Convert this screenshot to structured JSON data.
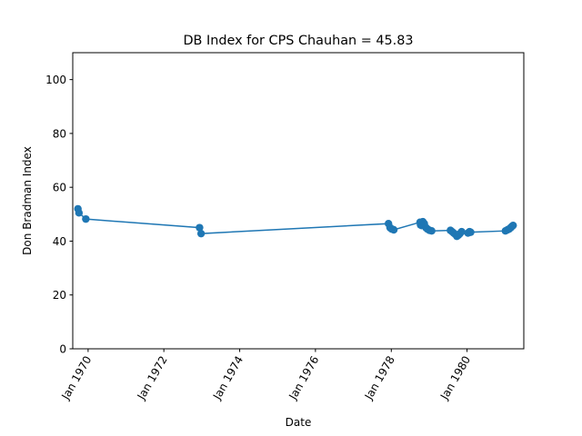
{
  "chart_data": {
    "type": "line",
    "title": "DB Index for CPS Chauhan = 45.83",
    "xlabel": "Date",
    "ylabel": "Don Bradman Index",
    "x_ticks": [
      "Jan 1970",
      "Jan 1972",
      "Jan 1974",
      "Jan 1976",
      "Jan 1978",
      "Jan 1980"
    ],
    "y_ticks": [
      "0",
      "20",
      "40",
      "60",
      "80",
      "100"
    ],
    "xlim": [
      "1969-08-06",
      "1981-07-01"
    ],
    "ylim": [
      0,
      110
    ],
    "grid": false,
    "series": [
      {
        "color": "#1f77b4",
        "marker": "circle",
        "points": [
          {
            "x": "1969-09-25",
            "y": 52.0
          },
          {
            "x": "1969-10-05",
            "y": 50.5
          },
          {
            "x": "1969-12-10",
            "y": 48.2
          },
          {
            "x": "1972-12-10",
            "y": 45.0
          },
          {
            "x": "1972-12-25",
            "y": 42.8
          },
          {
            "x": "1977-12-05",
            "y": 46.5
          },
          {
            "x": "1977-12-20",
            "y": 45.0
          },
          {
            "x": "1978-01-05",
            "y": 44.5
          },
          {
            "x": "1978-01-25",
            "y": 44.2
          },
          {
            "x": "1978-10-05",
            "y": 47.0
          },
          {
            "x": "1978-10-10",
            "y": 46.0
          },
          {
            "x": "1978-10-20",
            "y": 45.8
          },
          {
            "x": "1978-11-01",
            "y": 47.2
          },
          {
            "x": "1978-11-15",
            "y": 46.5
          },
          {
            "x": "1978-12-01",
            "y": 45.0
          },
          {
            "x": "1978-12-15",
            "y": 44.5
          },
          {
            "x": "1979-01-05",
            "y": 44.0
          },
          {
            "x": "1979-01-25",
            "y": 43.8
          },
          {
            "x": "1979-07-25",
            "y": 44.0
          },
          {
            "x": "1979-08-10",
            "y": 43.5
          },
          {
            "x": "1979-08-25",
            "y": 43.0
          },
          {
            "x": "1979-09-10",
            "y": 42.5
          },
          {
            "x": "1979-09-25",
            "y": 41.8
          },
          {
            "x": "1979-10-10",
            "y": 42.2
          },
          {
            "x": "1979-10-25",
            "y": 42.8
          },
          {
            "x": "1979-11-10",
            "y": 43.5
          },
          {
            "x": "1980-01-10",
            "y": 43.0
          },
          {
            "x": "1980-01-25",
            "y": 43.5
          },
          {
            "x": "1980-02-05",
            "y": 43.3
          },
          {
            "x": "1981-01-05",
            "y": 43.8
          },
          {
            "x": "1981-01-25",
            "y": 44.2
          },
          {
            "x": "1981-02-10",
            "y": 44.5
          },
          {
            "x": "1981-02-25",
            "y": 45.0
          },
          {
            "x": "1981-03-10",
            "y": 45.5
          },
          {
            "x": "1981-03-20",
            "y": 45.83
          }
        ]
      }
    ]
  }
}
